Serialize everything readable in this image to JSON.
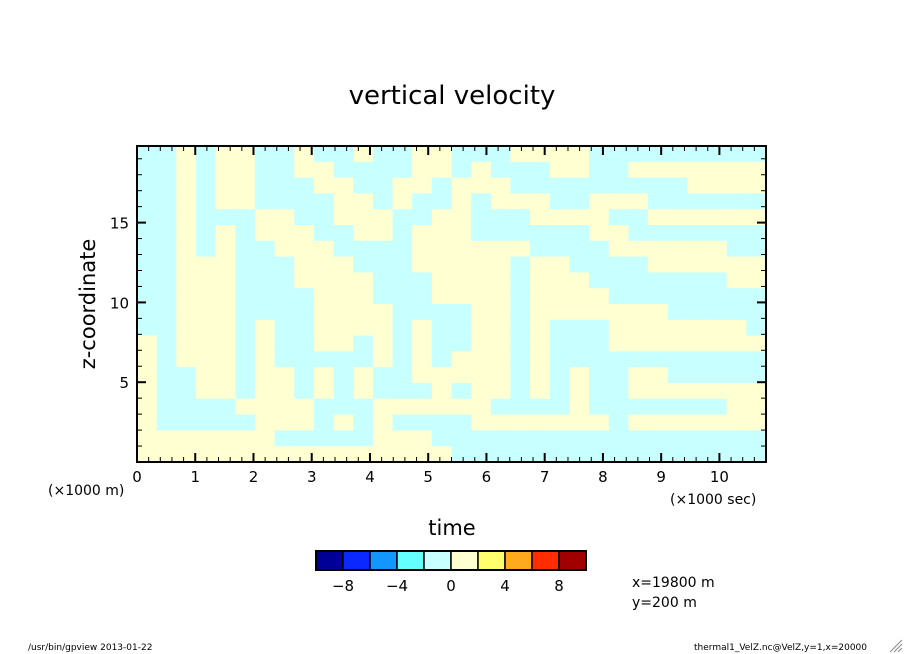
{
  "chart_data": {
    "type": "heatmap",
    "title": "vertical velocity",
    "xlabel": "time",
    "ylabel": "z-coordinate",
    "x_unit_label": "(×1000 sec)",
    "y_unit_label": "(×1000 m)",
    "xlim": [
      0,
      10.8
    ],
    "ylim": [
      0,
      19.8
    ],
    "x_ticks": [
      0,
      1,
      2,
      3,
      4,
      5,
      6,
      7,
      8,
      9,
      10
    ],
    "x_tick_labels": [
      "0",
      "1",
      "2",
      "3",
      "4",
      "5",
      "6",
      "7",
      "8",
      "9",
      "10"
    ],
    "x_minor_step": 0.2,
    "y_ticks": [
      5,
      10,
      15
    ],
    "y_tick_labels": [
      "5",
      "10",
      "15"
    ],
    "y_minor_step": 1,
    "grid": false,
    "field_note": "coarse sign map, rows listed top (high z) to bottom (z=0); C = -2..0, Y = 0..2",
    "cell_value": {
      "C": -1,
      "Y": 1
    },
    "field_rows": [
      "CCYCYYCCYCCYCCYYCCCYYYYCCCCCCCCC",
      "CCYCYYCCYYCCCCYYCYCCCYYCCYYYYYYY",
      "CCYCYYCCCYYCCYYCYYYCCCCCCCCCYYYY",
      "CCYCYYCCCCYYCYCCYCYYYCCYYYCCCCCC",
      "CCYCCCYYCCYYYCCYYCCCYYYYCCYYYYYY",
      "CCYCYCYYYCCYYCYYYCCCCCCYYCCCCCCC",
      "CCYCYCCYYYCCCCYYYYYYCCCCYYYYYYCC",
      "CCYYYCCCYYYCCCYYYYYCYYCCCCYYYYYY",
      "CCYYYCCCYYYYCCCYYYYCYYYCCCCCCCYY",
      "CCYYYCCCCYYYCCCYYYYCYYYYCCCCCCCC",
      "CCYYYCCCCYYYYCCCCYYCYYYYYYYCCCCC",
      "CCYYYCYCCYYYYCYCCYYCYCCCYYYYYYYC",
      "YCYYYCYCCYYCYCYCCYYCYCCCYYYYYYYY",
      "YCYYYCYCCCCCYCYCYYYCYCCCCCCCCCCC",
      "YCCYYCYYCYCYCCYYYYYCYCYCCYYCCCCC",
      "YCCYYCYYCYCYCCCYCYYCYCYCCYYYYYYY",
      "YCCCCYYYYCCCYYYYYYCCCCYCCCCCCCYY",
      "YCCCCCYYYCYCYCCCCYYYYYYYCYYYYYYY",
      "YYYYYYYCCCCCYYYCCCCCCCCCCCCCCCCC",
      "YYYYYYYYYYYYYYYYCCCCCCCCCCCCCCCC"
    ],
    "colorbar": {
      "levels": [
        -10,
        -8,
        -6,
        -4,
        -2,
        0,
        2,
        4,
        6,
        8,
        10
      ],
      "colors": [
        "#000096",
        "#0a28ff",
        "#1496ff",
        "#64ffff",
        "#c8ffff",
        "#ffffd2",
        "#ffff6e",
        "#ffaa1e",
        "#ff2d00",
        "#a00000"
      ],
      "tick_values": [
        -8,
        -4,
        0,
        4,
        8
      ],
      "tick_labels": [
        "−8",
        "−4",
        "0",
        "4",
        "8"
      ]
    }
  },
  "info": {
    "x_position": "x=19800 m",
    "y_position": "y=200 m"
  },
  "footer": {
    "left": "/usr/bin/gpview  2013-01-22",
    "right": "thermal1_VelZ.nc@VelZ,y=1,x=20000"
  },
  "icons": {
    "resize": "resize-grip-icon"
  }
}
